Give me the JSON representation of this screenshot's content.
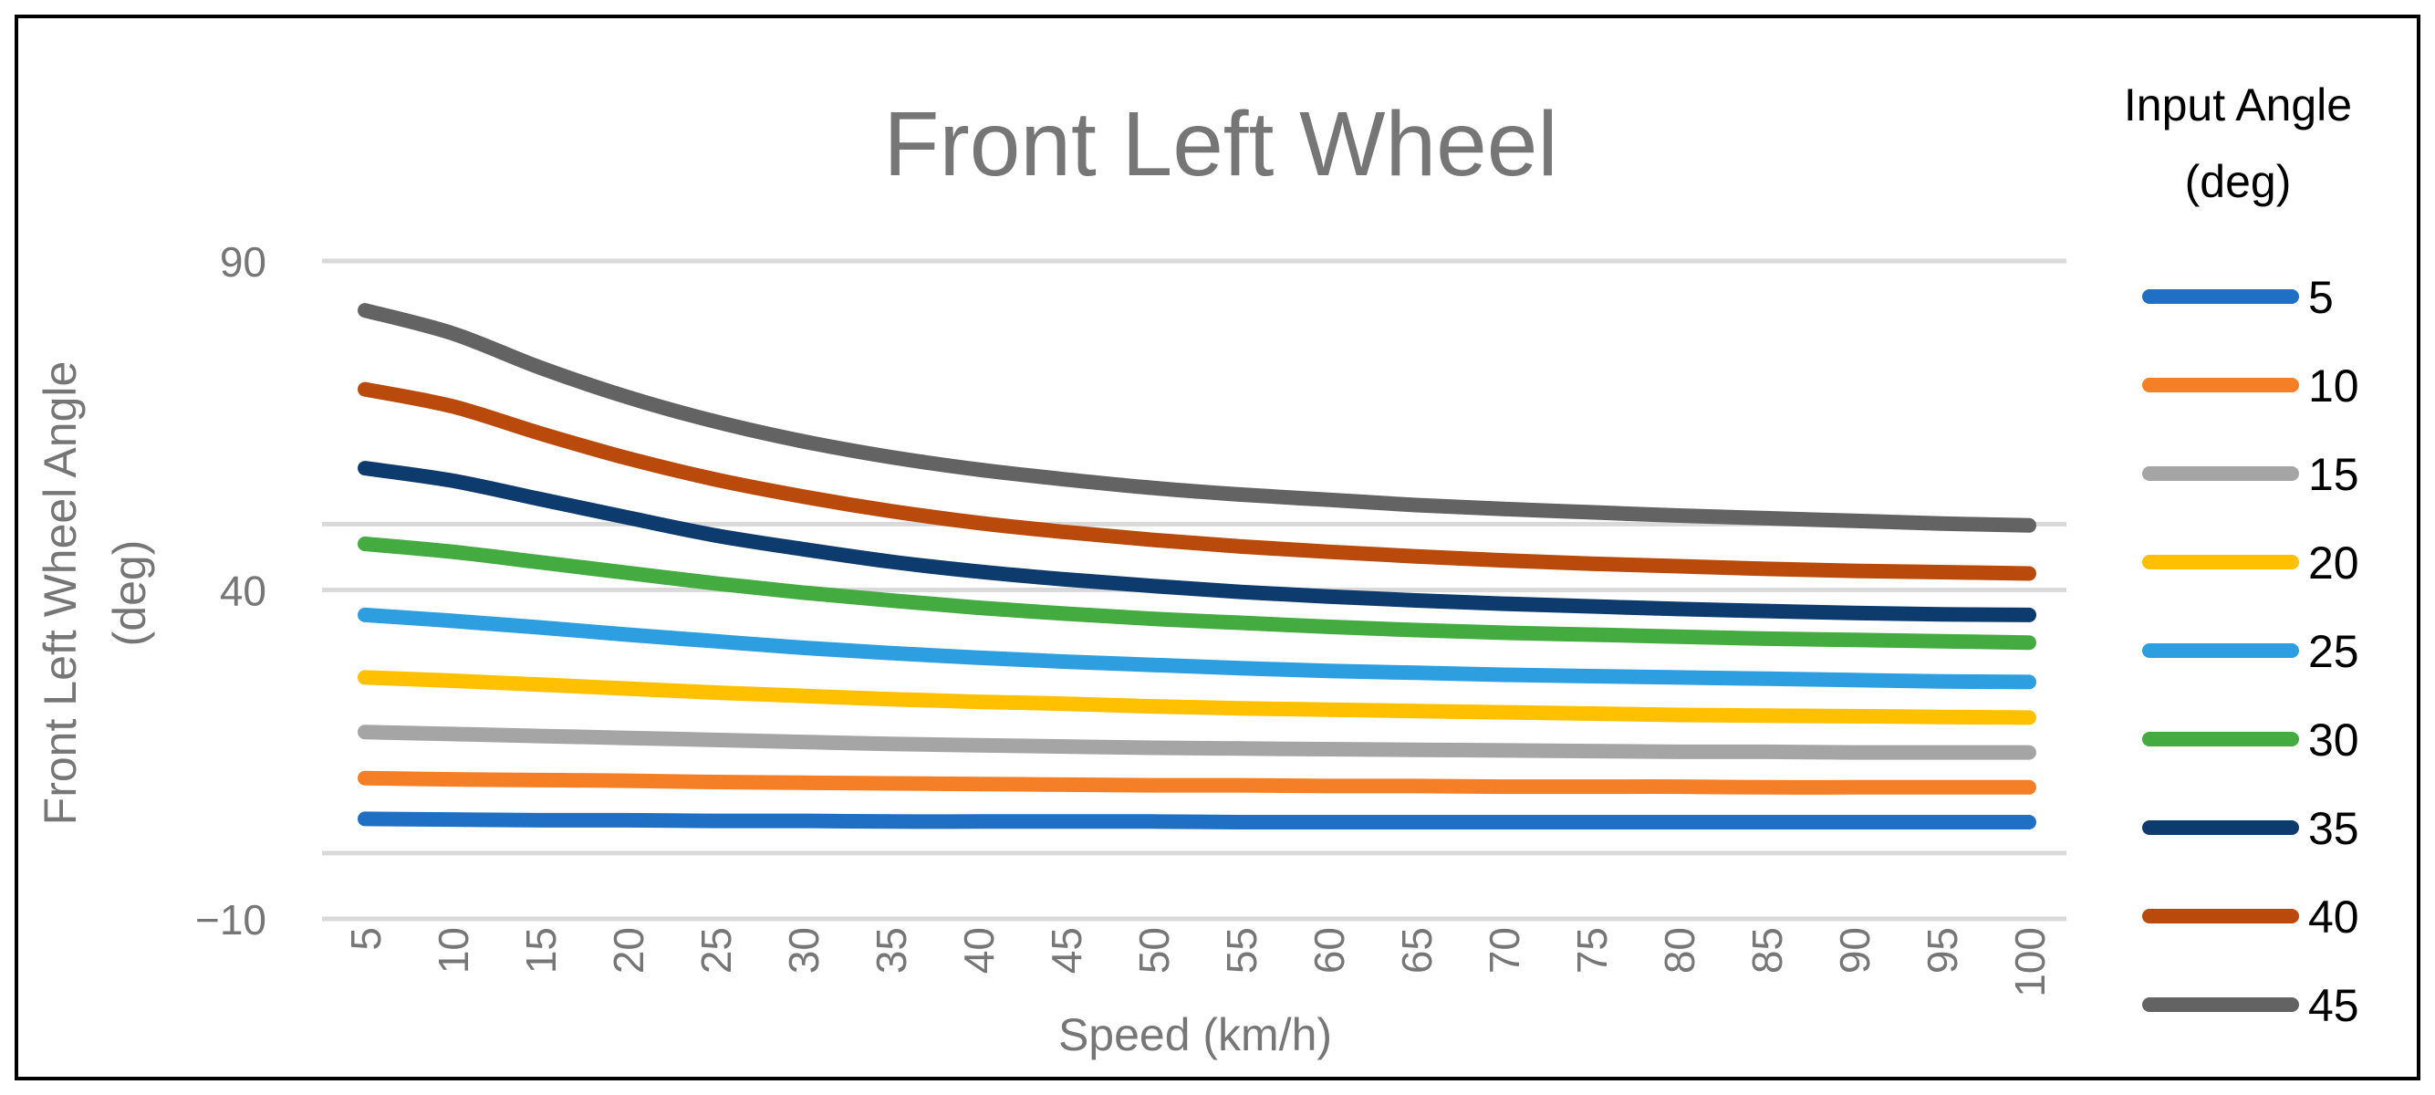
{
  "chart_data": {
    "type": "line",
    "title": "Front Left Wheel",
    "xlabel": "Speed (km/h)",
    "ylabel_lines": [
      "Front Left Wheel Angle",
      "(deg)"
    ],
    "ylim": [
      -10,
      90
    ],
    "yticks": [
      {
        "value": 90,
        "label": "90"
      },
      {
        "value": 40,
        "label": "40"
      },
      {
        "value": -10,
        "label": "−10"
      }
    ],
    "gridlines": [
      90,
      50,
      40,
      0,
      -10
    ],
    "x": [
      5,
      10,
      15,
      20,
      25,
      30,
      35,
      40,
      45,
      50,
      55,
      60,
      65,
      70,
      75,
      80,
      85,
      90,
      95,
      100
    ],
    "xtick_labels": [
      "5",
      "10",
      "15",
      "20",
      "25",
      "30",
      "35",
      "40",
      "45",
      "50",
      "55",
      "60",
      "65",
      "70",
      "75",
      "80",
      "85",
      "90",
      "95",
      "100"
    ],
    "legend": {
      "title_lines": [
        "Input Angle",
        "(deg)"
      ],
      "position": "right"
    },
    "series": [
      {
        "name": "5",
        "color": "#1f6fc5",
        "values": [
          5.2,
          5.1,
          5.0,
          5.0,
          4.9,
          4.9,
          4.8,
          4.8,
          4.8,
          4.8,
          4.7,
          4.7,
          4.7,
          4.7,
          4.7,
          4.7,
          4.7,
          4.7,
          4.7,
          4.7
        ]
      },
      {
        "name": "10",
        "color": "#f47f26",
        "values": [
          11.4,
          11.2,
          11.1,
          11.0,
          10.8,
          10.7,
          10.6,
          10.5,
          10.4,
          10.3,
          10.3,
          10.2,
          10.2,
          10.1,
          10.1,
          10.1,
          10.0,
          10.0,
          10.0,
          10.0
        ]
      },
      {
        "name": "15",
        "color": "#a5a5a5",
        "values": [
          18.4,
          18.1,
          17.8,
          17.5,
          17.2,
          16.9,
          16.6,
          16.4,
          16.2,
          16.0,
          15.9,
          15.8,
          15.7,
          15.6,
          15.5,
          15.4,
          15.4,
          15.3,
          15.3,
          15.3
        ]
      },
      {
        "name": "20",
        "color": "#ffc000",
        "values": [
          26.7,
          26.2,
          25.6,
          25.0,
          24.4,
          23.9,
          23.4,
          23.0,
          22.7,
          22.3,
          22.0,
          21.8,
          21.6,
          21.4,
          21.2,
          21.0,
          20.9,
          20.8,
          20.7,
          20.6
        ]
      },
      {
        "name": "25",
        "color": "#2d9ee0",
        "values": [
          36.2,
          35.3,
          34.3,
          33.2,
          32.2,
          31.2,
          30.4,
          29.7,
          29.1,
          28.6,
          28.1,
          27.7,
          27.4,
          27.1,
          26.9,
          26.7,
          26.5,
          26.3,
          26.1,
          26.0
        ]
      },
      {
        "name": "30",
        "color": "#43ab3f",
        "values": [
          47.0,
          45.8,
          44.2,
          42.6,
          41.0,
          39.6,
          38.4,
          37.3,
          36.4,
          35.6,
          35.0,
          34.4,
          33.9,
          33.5,
          33.2,
          32.9,
          32.6,
          32.4,
          32.2,
          32.0
        ]
      },
      {
        "name": "35",
        "color": "#0d3b6e",
        "values": [
          58.5,
          56.6,
          53.8,
          51.0,
          48.3,
          46.2,
          44.3,
          42.8,
          41.6,
          40.6,
          39.7,
          39.0,
          38.4,
          37.9,
          37.5,
          37.1,
          36.8,
          36.5,
          36.3,
          36.2
        ]
      },
      {
        "name": "40",
        "color": "#b94a0b",
        "values": [
          70.5,
          67.9,
          63.8,
          60.0,
          56.8,
          54.2,
          52.0,
          50.2,
          48.8,
          47.6,
          46.6,
          45.8,
          45.1,
          44.5,
          44.0,
          43.6,
          43.2,
          42.9,
          42.7,
          42.5
        ]
      },
      {
        "name": "45",
        "color": "#636363",
        "values": [
          82.5,
          79.0,
          73.8,
          69.3,
          65.6,
          62.6,
          60.2,
          58.3,
          56.8,
          55.5,
          54.5,
          53.7,
          52.9,
          52.3,
          51.8,
          51.3,
          50.9,
          50.5,
          50.1,
          49.8
        ]
      }
    ]
  }
}
